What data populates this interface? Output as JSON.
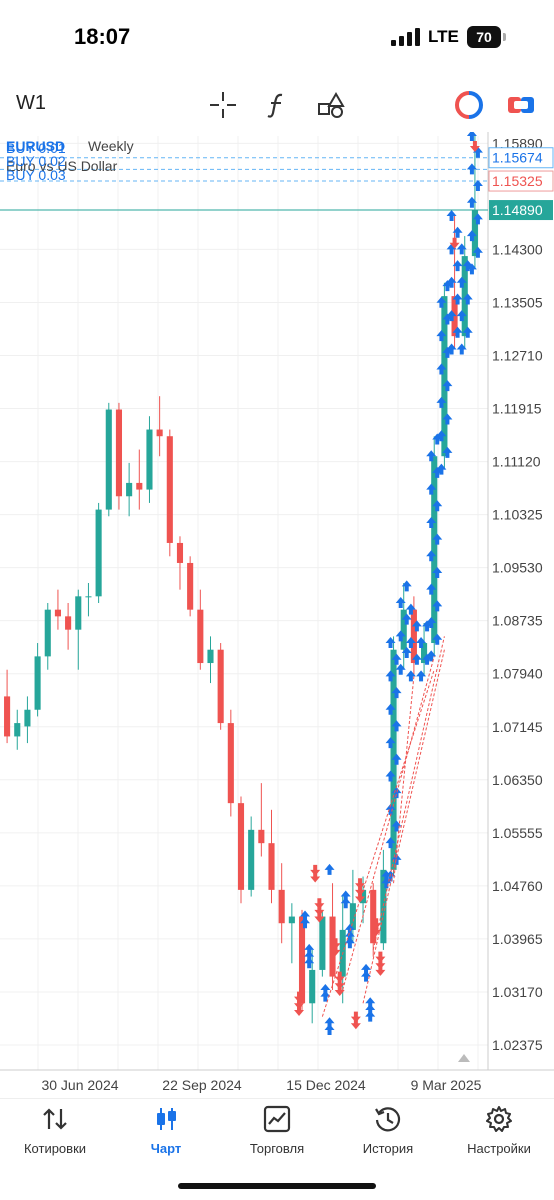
{
  "status": {
    "time": "18:07",
    "carrier": "LTE",
    "battery": "70"
  },
  "toolbar": {
    "timeframe": "W1",
    "icons": [
      "crosshair-icon",
      "function-icon",
      "objects-icon",
      "trade-circle-icon",
      "one-click-icon"
    ]
  },
  "chart": {
    "symbol": "EURUSD",
    "timeframe": "Weekly",
    "description": "Euro vs US Dollar",
    "orders": [
      "BUY 0.01",
      "BUY 0.02",
      "BUY 0.03"
    ],
    "price_levels": [
      "1.15890",
      "1.15674",
      "1.15325",
      "1.14890",
      "1.14300",
      "1.13505",
      "1.12710",
      "1.11915",
      "1.11120",
      "1.10325",
      "1.09530",
      "1.08735",
      "1.07940",
      "1.07145",
      "1.06350",
      "1.05555",
      "1.04760",
      "1.03965",
      "1.03170",
      "1.02375"
    ],
    "current_price": "1.14890",
    "date_labels": [
      "30 Jun 2024",
      "22 Sep 2024",
      "15 Dec 2024",
      "9 Mar 2025"
    ],
    "colors": {
      "bull": "#26a69a",
      "bear": "#ef5350",
      "accent": "#1a73e8",
      "current": "#26a69a"
    }
  },
  "chart_data": {
    "type": "candlestick",
    "y_axis_range": [
      1.02,
      1.16
    ],
    "candles": [
      {
        "o": 1.076,
        "h": 1.08,
        "l": 1.069,
        "c": 1.07
      },
      {
        "o": 1.07,
        "h": 1.074,
        "l": 1.068,
        "c": 1.072
      },
      {
        "o": 1.0715,
        "h": 1.076,
        "l": 1.069,
        "c": 1.074
      },
      {
        "o": 1.074,
        "h": 1.084,
        "l": 1.073,
        "c": 1.082
      },
      {
        "o": 1.082,
        "h": 1.09,
        "l": 1.08,
        "c": 1.089
      },
      {
        "o": 1.089,
        "h": 1.092,
        "l": 1.086,
        "c": 1.088
      },
      {
        "o": 1.088,
        "h": 1.09,
        "l": 1.083,
        "c": 1.086
      },
      {
        "o": 1.086,
        "h": 1.092,
        "l": 1.08,
        "c": 1.091
      },
      {
        "o": 1.091,
        "h": 1.093,
        "l": 1.088,
        "c": 1.091
      },
      {
        "o": 1.091,
        "h": 1.105,
        "l": 1.09,
        "c": 1.104
      },
      {
        "o": 1.104,
        "h": 1.12,
        "l": 1.103,
        "c": 1.119
      },
      {
        "o": 1.119,
        "h": 1.12,
        "l": 1.104,
        "c": 1.106
      },
      {
        "o": 1.106,
        "h": 1.111,
        "l": 1.103,
        "c": 1.108
      },
      {
        "o": 1.108,
        "h": 1.113,
        "l": 1.104,
        "c": 1.107
      },
      {
        "o": 1.107,
        "h": 1.118,
        "l": 1.105,
        "c": 1.116
      },
      {
        "o": 1.116,
        "h": 1.121,
        "l": 1.112,
        "c": 1.115
      },
      {
        "o": 1.115,
        "h": 1.116,
        "l": 1.097,
        "c": 1.099
      },
      {
        "o": 1.099,
        "h": 1.1,
        "l": 1.092,
        "c": 1.096
      },
      {
        "o": 1.096,
        "h": 1.097,
        "l": 1.088,
        "c": 1.089
      },
      {
        "o": 1.089,
        "h": 1.092,
        "l": 1.08,
        "c": 1.081
      },
      {
        "o": 1.081,
        "h": 1.085,
        "l": 1.078,
        "c": 1.083
      },
      {
        "o": 1.083,
        "h": 1.084,
        "l": 1.071,
        "c": 1.072
      },
      {
        "o": 1.072,
        "h": 1.074,
        "l": 1.058,
        "c": 1.06
      },
      {
        "o": 1.06,
        "h": 1.061,
        "l": 1.045,
        "c": 1.047
      },
      {
        "o": 1.047,
        "h": 1.058,
        "l": 1.046,
        "c": 1.056
      },
      {
        "o": 1.056,
        "h": 1.063,
        "l": 1.052,
        "c": 1.054
      },
      {
        "o": 1.054,
        "h": 1.059,
        "l": 1.045,
        "c": 1.047
      },
      {
        "o": 1.047,
        "h": 1.051,
        "l": 1.039,
        "c": 1.042
      },
      {
        "o": 1.042,
        "h": 1.045,
        "l": 1.036,
        "c": 1.043
      },
      {
        "o": 1.043,
        "h": 1.044,
        "l": 1.029,
        "c": 1.03
      },
      {
        "o": 1.03,
        "h": 1.038,
        "l": 1.027,
        "c": 1.035
      },
      {
        "o": 1.035,
        "h": 1.044,
        "l": 1.034,
        "c": 1.043
      },
      {
        "o": 1.043,
        "h": 1.048,
        "l": 1.032,
        "c": 1.034
      },
      {
        "o": 1.034,
        "h": 1.046,
        "l": 1.03,
        "c": 1.041
      },
      {
        "o": 1.041,
        "h": 1.05,
        "l": 1.039,
        "c": 1.045
      },
      {
        "o": 1.045,
        "h": 1.049,
        "l": 1.042,
        "c": 1.047
      },
      {
        "o": 1.047,
        "h": 1.048,
        "l": 1.037,
        "c": 1.039
      },
      {
        "o": 1.039,
        "h": 1.053,
        "l": 1.038,
        "c": 1.05
      },
      {
        "o": 1.05,
        "h": 1.085,
        "l": 1.049,
        "c": 1.083
      },
      {
        "o": 1.083,
        "h": 1.093,
        "l": 1.08,
        "c": 1.089
      },
      {
        "o": 1.089,
        "h": 1.091,
        "l": 1.079,
        "c": 1.081
      },
      {
        "o": 1.081,
        "h": 1.087,
        "l": 1.079,
        "c": 1.084
      },
      {
        "o": 1.084,
        "h": 1.115,
        "l": 1.082,
        "c": 1.112
      },
      {
        "o": 1.112,
        "h": 1.138,
        "l": 1.11,
        "c": 1.136
      },
      {
        "o": 1.136,
        "h": 1.148,
        "l": 1.128,
        "c": 1.13
      },
      {
        "o": 1.13,
        "h": 1.145,
        "l": 1.128,
        "c": 1.142
      },
      {
        "o": 1.142,
        "h": 1.16,
        "l": 1.14,
        "c": 1.1489
      }
    ]
  }
}
